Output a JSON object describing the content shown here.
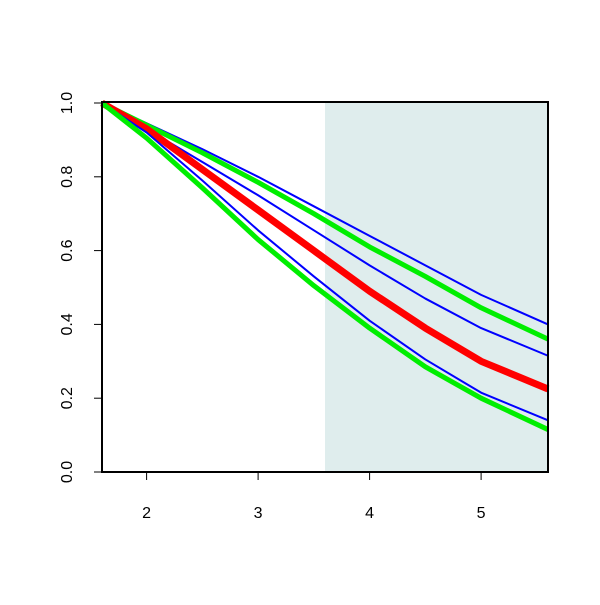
{
  "chart_data": {
    "type": "line",
    "x": [
      1.6,
      2,
      2.5,
      3,
      3.5,
      4,
      4.5,
      5,
      5.6
    ],
    "series": [
      {
        "color": "#0000ff",
        "width": 2,
        "values": [
          1,
          0.945,
          0.875,
          0.8,
          0.72,
          0.64,
          0.56,
          0.48,
          0.4
        ]
      },
      {
        "color": "#00ee00",
        "width": 5,
        "values": [
          1,
          0.94,
          0.865,
          0.785,
          0.7,
          0.61,
          0.53,
          0.445,
          0.36
        ]
      },
      {
        "color": "#0000ff",
        "width": 2,
        "values": [
          1,
          0.93,
          0.84,
          0.75,
          0.655,
          0.56,
          0.47,
          0.39,
          0.315
        ]
      },
      {
        "color": "#ff0000",
        "width": 7,
        "values": [
          1,
          0.93,
          0.82,
          0.71,
          0.6,
          0.49,
          0.39,
          0.3,
          0.225
        ]
      },
      {
        "color": "#0000ff",
        "width": 2,
        "values": [
          1,
          0.92,
          0.79,
          0.655,
          0.53,
          0.41,
          0.305,
          0.215,
          0.14
        ]
      },
      {
        "color": "#00ee00",
        "width": 5,
        "values": [
          1,
          0.905,
          0.77,
          0.63,
          0.505,
          0.39,
          0.285,
          0.2,
          0.115
        ]
      }
    ],
    "shade_x": [
      3.6,
      5.6
    ],
    "shade_color": "#dfeded",
    "xlim": [
      1.6,
      5.6
    ],
    "xticks": [
      2,
      3,
      4,
      5
    ],
    "ylim": [
      0,
      1
    ],
    "yticks": [
      {
        "value": 0,
        "label": "0.0"
      },
      {
        "value": 0.2,
        "label": "0.2"
      },
      {
        "value": 0.4,
        "label": "0.4"
      },
      {
        "value": 0.6,
        "label": "0.6"
      },
      {
        "value": 0.8,
        "label": "0.8"
      },
      {
        "value": 1,
        "label": "1.0"
      }
    ]
  }
}
